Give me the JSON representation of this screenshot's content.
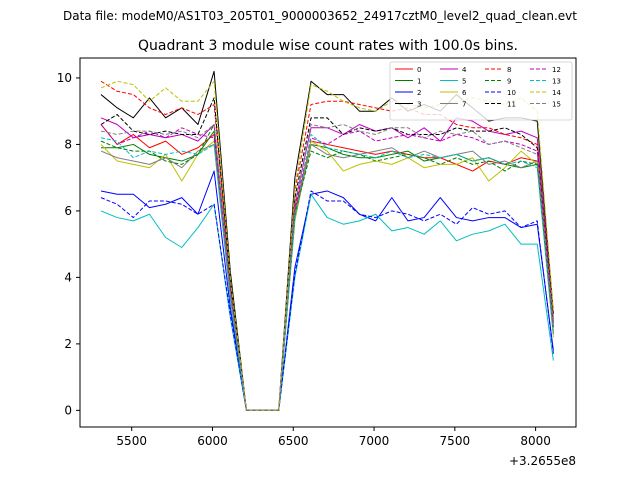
{
  "chart_data": {
    "type": "line",
    "suptitle": "Data file: modeM0/AS1T03_205T01_9000003652_24917cztM0_level2_quad_clean.evt",
    "title": "Quadrant 3 module wise count rates with 100.0s bins.",
    "xlabel": "",
    "ylabel": "",
    "x_offset_label": "+3.2655e8",
    "xlim": [
      5180,
      8250
    ],
    "ylim": [
      -0.5,
      10.6
    ],
    "x_ticks": [
      5500,
      6000,
      6500,
      7000,
      7500,
      8000
    ],
    "x_tick_labels": [
      "5500",
      "6000",
      "6500",
      "7000",
      "7500",
      "8000"
    ],
    "y_ticks": [
      0,
      2,
      4,
      6,
      8,
      10
    ],
    "y_tick_labels": [
      "0",
      "2",
      "4",
      "6",
      "8",
      "10"
    ],
    "legend_position": "top-right",
    "x": [
      5310,
      5410,
      5510,
      5610,
      5710,
      5810,
      5910,
      6010,
      6110,
      6210,
      6310,
      6410,
      6510,
      6610,
      6710,
      6810,
      6910,
      7010,
      7110,
      7210,
      7310,
      7410,
      7510,
      7610,
      7710,
      7810,
      7910,
      8010,
      8110
    ],
    "series": [
      {
        "name": "0",
        "color": "#ff0000",
        "dash": false,
        "values": [
          8.6,
          8.0,
          8.3,
          7.9,
          8.1,
          7.7,
          7.9,
          8.3,
          3.5,
          0,
          0,
          0,
          6.0,
          8.1,
          8.0,
          7.9,
          7.8,
          7.7,
          7.8,
          7.7,
          7.6,
          7.6,
          7.4,
          7.2,
          7.5,
          7.4,
          7.6,
          7.5,
          2.5
        ]
      },
      {
        "name": "1",
        "color": "#008000",
        "dash": false,
        "values": [
          7.9,
          7.9,
          8.0,
          7.7,
          7.6,
          7.5,
          7.7,
          8.4,
          3.6,
          0,
          0,
          0,
          5.8,
          8.0,
          7.9,
          7.7,
          7.6,
          7.6,
          7.7,
          7.8,
          7.5,
          7.6,
          7.7,
          7.5,
          7.6,
          7.4,
          7.3,
          7.4,
          2.3
        ]
      },
      {
        "name": "2",
        "color": "#0000ff",
        "dash": false,
        "values": [
          6.6,
          6.5,
          6.5,
          6.1,
          6.2,
          6.4,
          5.9,
          7.2,
          3.1,
          0,
          0,
          0,
          4.3,
          6.5,
          6.6,
          6.4,
          5.9,
          5.7,
          6.4,
          5.7,
          5.8,
          6.4,
          5.8,
          5.7,
          5.8,
          5.8,
          5.5,
          5.6,
          1.8
        ]
      },
      {
        "name": "3",
        "color": "#000000",
        "dash": false,
        "values": [
          9.5,
          9.1,
          8.8,
          9.4,
          8.8,
          9.1,
          8.6,
          10.2,
          4.2,
          0,
          0,
          0,
          7.0,
          9.9,
          9.5,
          9.5,
          9.0,
          9.0,
          9.4,
          9.0,
          9.2,
          9.0,
          9.5,
          9.1,
          8.7,
          8.8,
          8.8,
          8.7,
          2.9
        ]
      },
      {
        "name": "4",
        "color": "#bf00bf",
        "dash": false,
        "values": [
          8.8,
          8.6,
          8.2,
          8.3,
          8.2,
          8.3,
          8.1,
          8.6,
          3.7,
          0,
          0,
          0,
          6.2,
          8.5,
          8.5,
          8.3,
          8.6,
          8.4,
          8.5,
          8.2,
          8.5,
          8.1,
          8.8,
          8.7,
          8.4,
          8.3,
          8.4,
          8.2,
          2.7
        ]
      },
      {
        "name": "5",
        "color": "#00bfbf",
        "dash": false,
        "values": [
          6.0,
          5.8,
          5.7,
          5.9,
          5.2,
          4.9,
          5.5,
          6.2,
          2.8,
          0,
          0,
          0,
          4.0,
          6.5,
          5.8,
          5.6,
          5.7,
          5.9,
          5.4,
          5.5,
          5.3,
          5.7,
          5.1,
          5.3,
          5.4,
          5.6,
          5.0,
          5.0,
          1.5
        ]
      },
      {
        "name": "6",
        "color": "#bfbf00",
        "dash": false,
        "values": [
          8.0,
          7.5,
          7.4,
          7.3,
          7.7,
          6.9,
          7.7,
          8.1,
          3.4,
          0,
          0,
          0,
          5.7,
          8.1,
          7.8,
          7.2,
          7.4,
          7.5,
          7.4,
          7.6,
          7.3,
          7.4,
          7.4,
          7.6,
          6.9,
          7.3,
          7.8,
          7.4,
          2.2
        ]
      },
      {
        "name": "7",
        "color": "#7f7f7f",
        "dash": false,
        "values": [
          7.8,
          7.6,
          7.5,
          7.4,
          7.6,
          7.3,
          7.8,
          8.0,
          3.4,
          0,
          0,
          0,
          5.8,
          8.0,
          7.7,
          7.6,
          7.7,
          7.8,
          7.9,
          7.6,
          7.8,
          7.6,
          7.7,
          7.8,
          7.4,
          7.5,
          7.3,
          7.5,
          2.3
        ]
      },
      {
        "name": "8",
        "color": "#ff0000",
        "dash": true,
        "values": [
          9.9,
          9.6,
          9.5,
          9.1,
          8.9,
          9.1,
          8.9,
          9.2,
          3.9,
          0,
          0,
          0,
          6.6,
          9.2,
          9.3,
          9.3,
          9.2,
          9.1,
          9.0,
          9.1,
          8.9,
          8.9,
          8.6,
          8.5,
          8.5,
          8.3,
          8.2,
          8.0,
          2.7
        ]
      },
      {
        "name": "9",
        "color": "#008000",
        "dash": true,
        "values": [
          8.1,
          7.9,
          7.8,
          7.8,
          7.5,
          7.4,
          7.7,
          8.6,
          3.6,
          0,
          0,
          0,
          5.9,
          7.8,
          7.6,
          7.8,
          7.7,
          7.5,
          7.6,
          7.7,
          7.6,
          7.4,
          7.6,
          7.4,
          7.5,
          7.2,
          7.5,
          7.4,
          2.4
        ]
      },
      {
        "name": "10",
        "color": "#0000ff",
        "dash": true,
        "values": [
          6.4,
          6.2,
          5.8,
          6.3,
          6.3,
          6.2,
          5.9,
          6.2,
          2.9,
          0,
          0,
          0,
          4.1,
          6.6,
          6.3,
          6.3,
          5.9,
          5.8,
          6.0,
          5.9,
          5.7,
          5.9,
          5.6,
          6.1,
          5.9,
          6.0,
          5.5,
          5.7,
          1.7
        ]
      },
      {
        "name": "11",
        "color": "#000000",
        "dash": true,
        "values": [
          8.6,
          8.9,
          8.4,
          8.3,
          8.4,
          8.3,
          8.3,
          9.4,
          3.9,
          0,
          0,
          0,
          6.4,
          8.8,
          8.8,
          8.3,
          8.5,
          8.4,
          8.5,
          8.3,
          8.3,
          8.3,
          8.5,
          8.4,
          8.4,
          8.5,
          8.3,
          7.9,
          2.6
        ]
      },
      {
        "name": "12",
        "color": "#bf00bf",
        "dash": true,
        "values": [
          8.6,
          8.0,
          8.2,
          8.4,
          8.2,
          8.5,
          8.3,
          8.2,
          3.5,
          0,
          0,
          0,
          6.1,
          8.2,
          8.0,
          8.3,
          8.4,
          8.1,
          8.2,
          8.3,
          8.2,
          8.1,
          8.3,
          8.2,
          8.0,
          8.1,
          8.0,
          7.8,
          2.5
        ]
      },
      {
        "name": "13",
        "color": "#00bfbf",
        "dash": true,
        "values": [
          8.2,
          8.1,
          7.6,
          7.8,
          7.7,
          7.8,
          7.7,
          8.0,
          3.4,
          0,
          0,
          0,
          5.8,
          8.3,
          7.9,
          7.8,
          7.7,
          7.6,
          7.8,
          7.6,
          7.7,
          7.6,
          7.7,
          7.5,
          7.6,
          7.4,
          7.5,
          7.3,
          2.3
        ]
      },
      {
        "name": "14",
        "color": "#bfbf00",
        "dash": true,
        "values": [
          9.7,
          9.9,
          9.8,
          9.3,
          9.7,
          9.3,
          9.3,
          9.9,
          4.0,
          0,
          0,
          0,
          6.7,
          9.8,
          9.6,
          9.3,
          9.1,
          9.0,
          9.3,
          9.2,
          9.1,
          9.2,
          9.3,
          9.4,
          9.3,
          9.2,
          9.4,
          9.0,
          3.0
        ]
      },
      {
        "name": "15",
        "color": "#7f7f7f",
        "dash": true,
        "values": [
          8.4,
          8.3,
          8.4,
          8.4,
          8.3,
          8.4,
          8.2,
          8.6,
          3.6,
          0,
          0,
          0,
          6.2,
          8.6,
          8.5,
          8.6,
          8.4,
          8.3,
          8.5,
          8.5,
          8.2,
          8.4,
          8.3,
          8.4,
          8.0,
          8.1,
          7.9,
          7.7,
          2.6
        ]
      }
    ]
  }
}
